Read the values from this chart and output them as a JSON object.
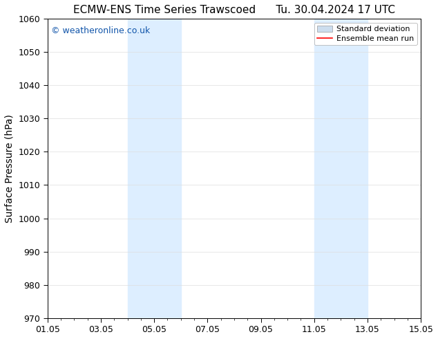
{
  "title_left": "ECMW-ENS Time Series Trawscoed",
  "title_right": "Tu. 30.04.2024 17 UTC",
  "ylabel": "Surface Pressure (hPa)",
  "xlim": [
    1.05,
    15.05
  ],
  "ylim": [
    970,
    1060
  ],
  "yticks": [
    970,
    980,
    990,
    1000,
    1010,
    1020,
    1030,
    1040,
    1050,
    1060
  ],
  "xtick_labels": [
    "01.05",
    "03.05",
    "05.05",
    "07.05",
    "09.05",
    "11.05",
    "13.05",
    "15.05"
  ],
  "xtick_positions": [
    1.05,
    3.05,
    5.05,
    7.05,
    9.05,
    11.05,
    13.05,
    15.05
  ],
  "shaded_bands": [
    {
      "xmin": 4.05,
      "xmax": 6.05
    },
    {
      "xmin": 11.05,
      "xmax": 13.05
    }
  ],
  "shade_color": "#ddeeff",
  "watermark_text": "© weatheronline.co.uk",
  "watermark_color": "#1155aa",
  "legend_label_std": "Standard deviation",
  "legend_label_ens": "Ensemble mean run",
  "legend_std_color": "#ccddee",
  "legend_ens_color": "red",
  "background_color": "#ffffff",
  "grid_color": "#dddddd",
  "title_fontsize": 11,
  "tick_fontsize": 9,
  "ylabel_fontsize": 10,
  "watermark_fontsize": 9,
  "legend_fontsize": 8
}
